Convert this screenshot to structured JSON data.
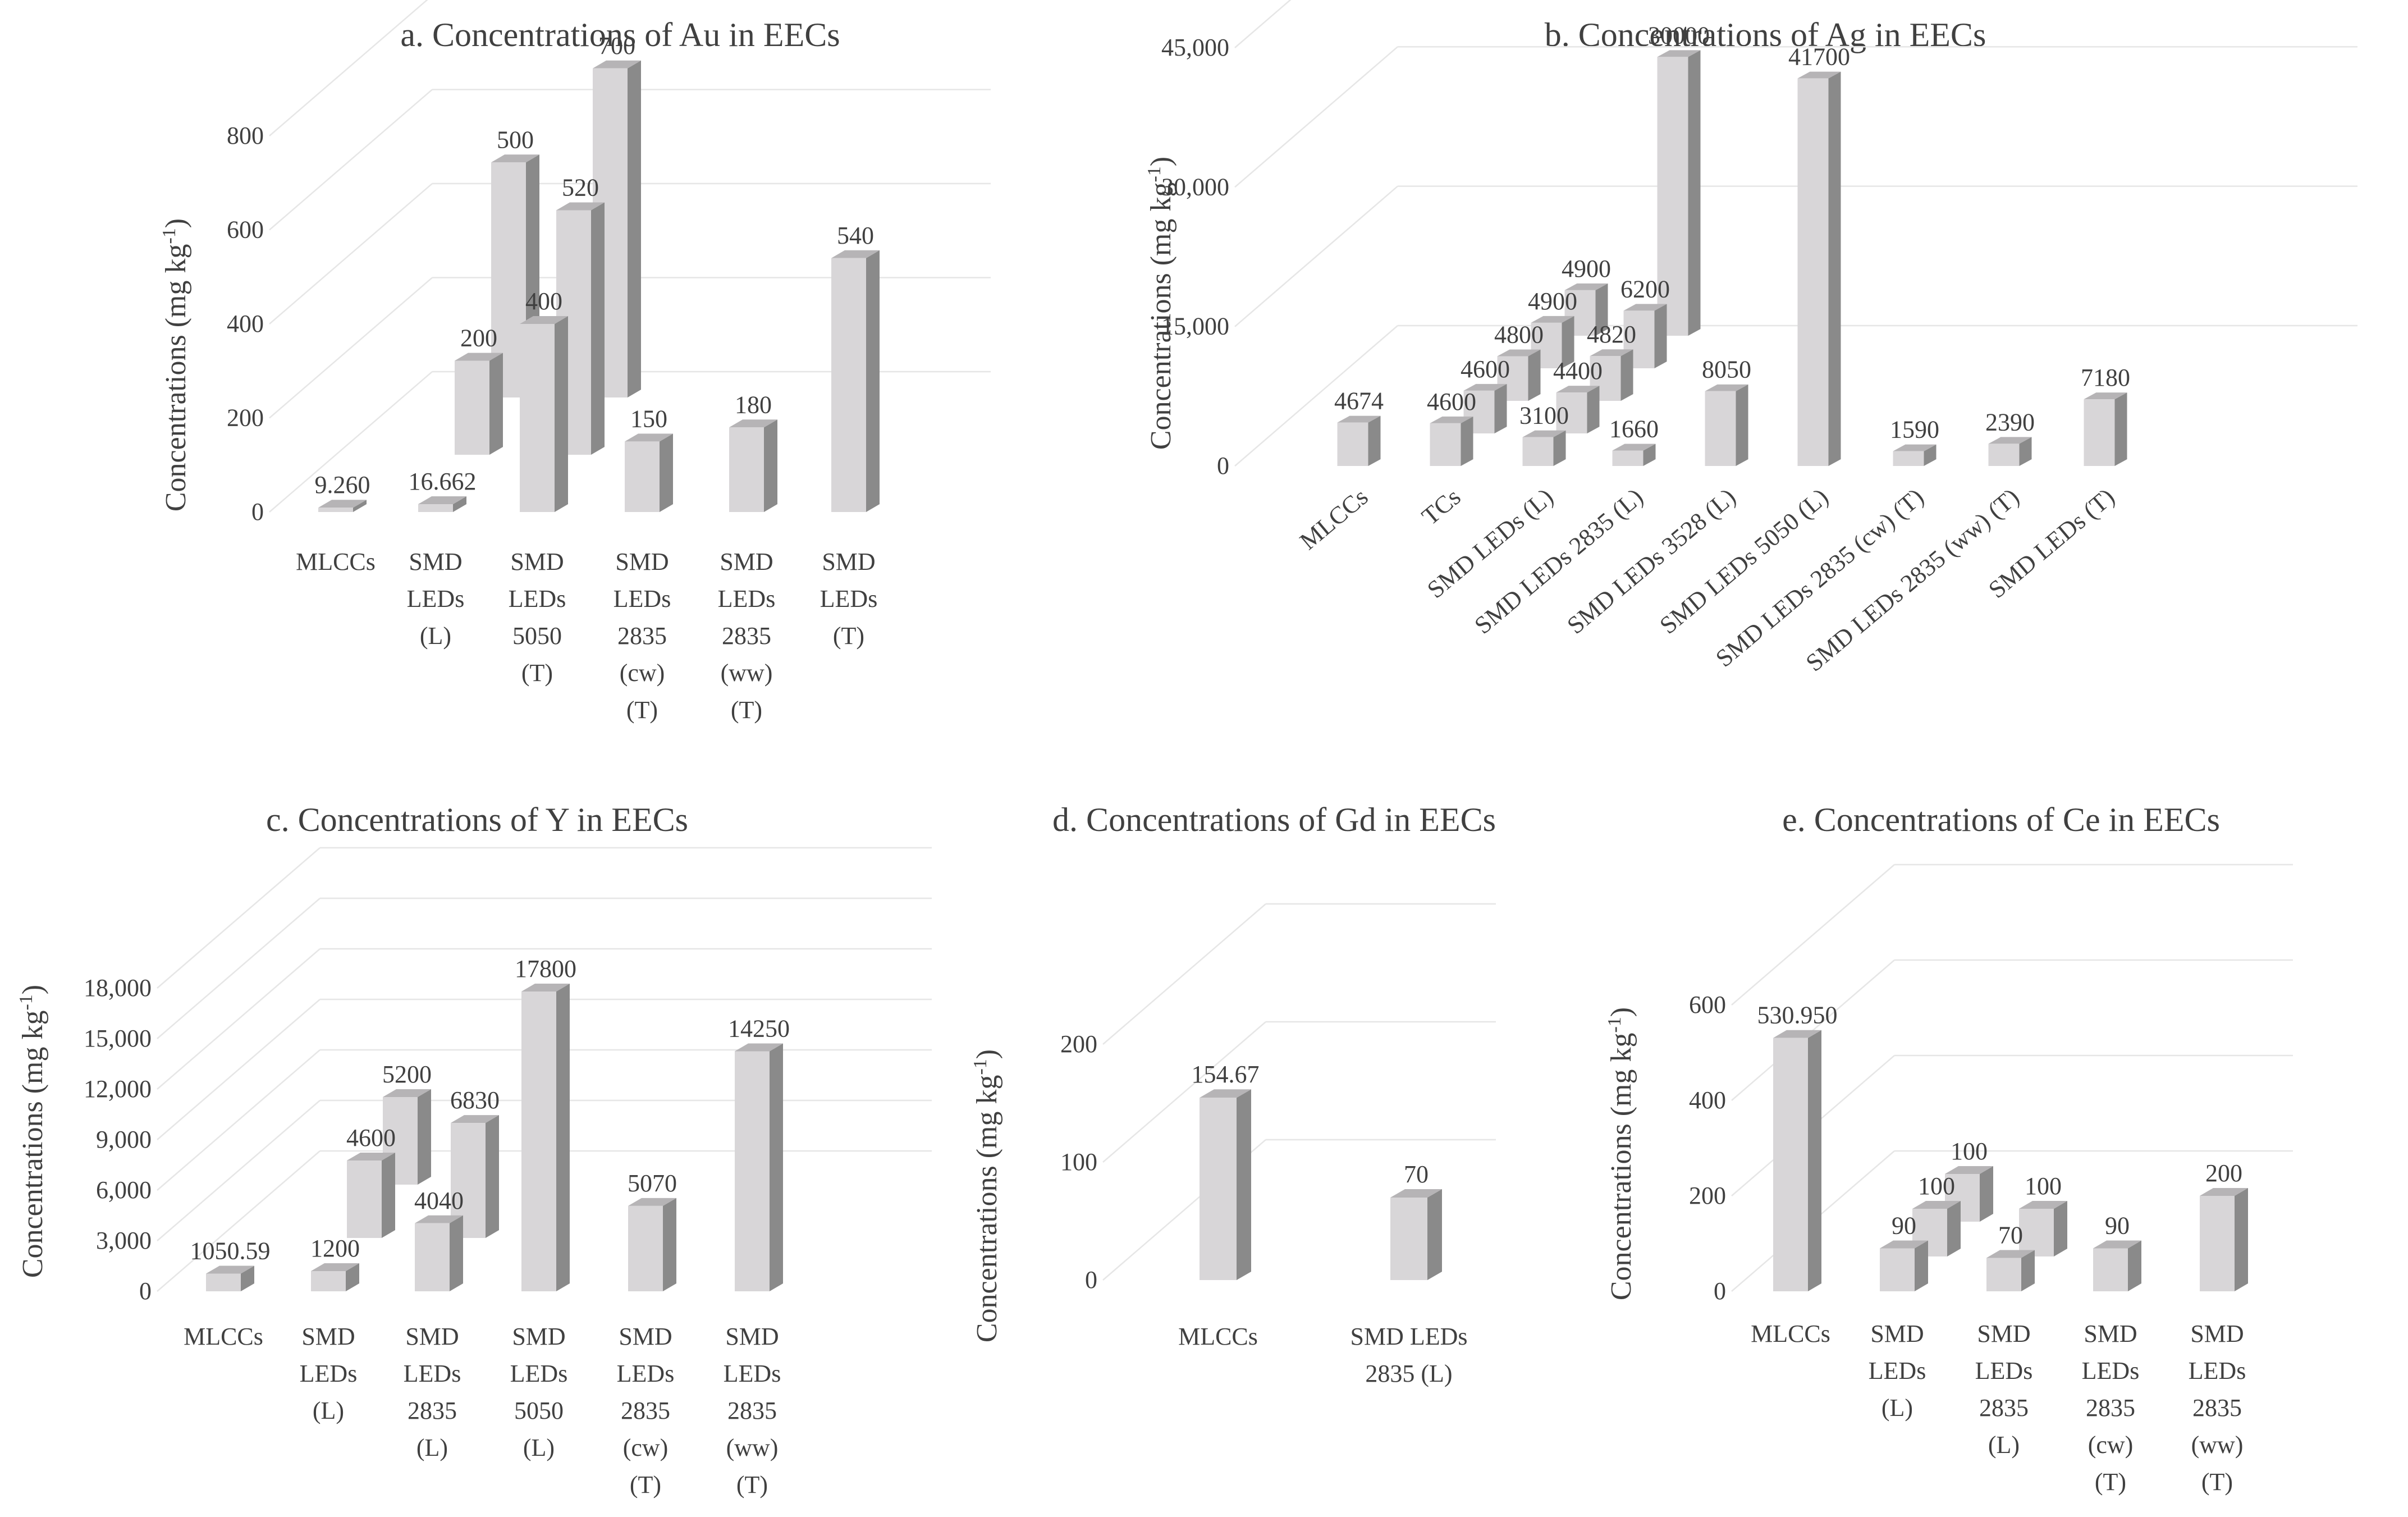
{
  "chart_data": [
    {
      "id": "au",
      "type": "bar",
      "title": "a. Concentrations of Au in EECs",
      "ylabel": "Concentrations (mg kg",
      "ylabel_sup": "-1",
      "ylabel_close": ")",
      "ylim": [
        0,
        800
      ],
      "yticks": [
        "0",
        "200",
        "400",
        "600",
        "800"
      ],
      "grid": true,
      "categories": [
        [
          "MLCCs"
        ],
        [
          "SMD",
          "LEDs",
          "(L)"
        ],
        [
          "SMD",
          "LEDs",
          "5050",
          "(T)"
        ],
        [
          "SMD",
          "LEDs",
          "2835",
          "(cw)",
          "(T)"
        ],
        [
          "SMD",
          "LEDs",
          "2835",
          "(ww)",
          "(T)"
        ],
        [
          "SMD",
          "LEDs",
          "(T)"
        ]
      ],
      "bars": [
        {
          "category": 0,
          "depth": 0,
          "value": 9.26,
          "label": "9.260"
        },
        {
          "category": 1,
          "depth": 0,
          "value": 16.662,
          "label": "16.662"
        },
        {
          "category": 1,
          "depth": 1,
          "value": 200,
          "label": "200"
        },
        {
          "category": 1,
          "depth": 2,
          "value": 500,
          "label": "500"
        },
        {
          "category": 2,
          "depth": 0,
          "value": 400,
          "label": "400"
        },
        {
          "category": 2,
          "depth": 1,
          "value": 520,
          "label": "520"
        },
        {
          "category": 2,
          "depth": 2,
          "value": 700,
          "label": "700"
        },
        {
          "category": 3,
          "depth": 0,
          "value": 150,
          "label": "150"
        },
        {
          "category": 4,
          "depth": 0,
          "value": 180,
          "label": "180"
        },
        {
          "category": 5,
          "depth": 0,
          "value": 540,
          "label": "540"
        }
      ]
    },
    {
      "id": "ag",
      "type": "bar",
      "title": "b. Concentrations of Ag in EECs",
      "ylabel": "Concentrations (mg kg",
      "ylabel_sup": "-1",
      "ylabel_close": ")",
      "ylim": [
        0,
        45000
      ],
      "yticks": [
        "0",
        "15,000",
        "30,000",
        "45,000"
      ],
      "grid": true,
      "categories": [
        [
          "MLCCs"
        ],
        [
          "TCs"
        ],
        [
          "SMD LEDs (L)"
        ],
        [
          "SMD LEDs 2835 (L)"
        ],
        [
          "SMD LEDs 3528 (L)"
        ],
        [
          "SMD LEDs 5050 (L)"
        ],
        [
          "SMD LEDs 2835 (cw) (T)"
        ],
        [
          "SMD LEDs 2835 (ww) (T)"
        ],
        [
          "SMD LEDs (T)"
        ]
      ],
      "bars": [
        {
          "category": 0,
          "depth": 0,
          "value": 4674,
          "label": "4674"
        },
        {
          "category": 1,
          "depth": 0,
          "value": 4600,
          "label": "4600"
        },
        {
          "category": 1,
          "depth": 1,
          "value": 4600,
          "label": "4600"
        },
        {
          "category": 1,
          "depth": 2,
          "value": 4800,
          "label": "4800"
        },
        {
          "category": 1,
          "depth": 3,
          "value": 4900,
          "label": "4900"
        },
        {
          "category": 1,
          "depth": 4,
          "value": 4900,
          "label": "4900"
        },
        {
          "category": 2,
          "depth": 0,
          "value": 3100,
          "label": "3100"
        },
        {
          "category": 2,
          "depth": 1,
          "value": 4400,
          "label": "4400"
        },
        {
          "category": 2,
          "depth": 2,
          "value": 4820,
          "label": "4820"
        },
        {
          "category": 2,
          "depth": 3,
          "value": 6200,
          "label": "6200"
        },
        {
          "category": 2,
          "depth": 4,
          "value": 30000,
          "label": "30000"
        },
        {
          "category": 3,
          "depth": 0,
          "value": 1660,
          "label": "1660"
        },
        {
          "category": 4,
          "depth": 0,
          "value": 8050,
          "label": "8050"
        },
        {
          "category": 5,
          "depth": 0,
          "value": 41700,
          "label": "41700"
        },
        {
          "category": 6,
          "depth": 0,
          "value": 1590,
          "label": "1590"
        },
        {
          "category": 7,
          "depth": 0,
          "value": 2390,
          "label": "2390"
        },
        {
          "category": 8,
          "depth": 0,
          "value": 7180,
          "label": "7180"
        }
      ]
    },
    {
      "id": "y",
      "type": "bar",
      "title": "c. Concentrations of Y in EECs",
      "ylabel": "Concentrations (mg kg",
      "ylabel_sup": "-1",
      "ylabel_close": ")",
      "ylim": [
        0,
        18000
      ],
      "yticks": [
        "0",
        "3,000",
        "6,000",
        "9,000",
        "12,000",
        "15,000",
        "18,000"
      ],
      "grid": true,
      "categories": [
        [
          "MLCCs"
        ],
        [
          "SMD",
          "LEDs",
          "(L)"
        ],
        [
          "SMD",
          "LEDs",
          "2835",
          "(L)"
        ],
        [
          "SMD",
          "LEDs",
          "5050",
          "(L)"
        ],
        [
          "SMD",
          "LEDs",
          "2835",
          "(cw)",
          "(T)"
        ],
        [
          "SMD",
          "LEDs",
          "2835",
          "(ww)",
          "(T)"
        ]
      ],
      "bars": [
        {
          "category": 0,
          "depth": 0,
          "value": 1050.59,
          "label": "1050.59"
        },
        {
          "category": 1,
          "depth": 0,
          "value": 1200,
          "label": "1200"
        },
        {
          "category": 1,
          "depth": 1,
          "value": 4600,
          "label": "4600"
        },
        {
          "category": 1,
          "depth": 2,
          "value": 5200,
          "label": "5200"
        },
        {
          "category": 2,
          "depth": 0,
          "value": 4040,
          "label": "4040"
        },
        {
          "category": 2,
          "depth": 1,
          "value": 6830,
          "label": "6830"
        },
        {
          "category": 3,
          "depth": 0,
          "value": 17800,
          "label": "17800"
        },
        {
          "category": 4,
          "depth": 0,
          "value": 5070,
          "label": "5070"
        },
        {
          "category": 5,
          "depth": 0,
          "value": 14250,
          "label": "14250"
        }
      ]
    },
    {
      "id": "gd",
      "type": "bar",
      "title": "d. Concentrations of Gd in EECs",
      "ylabel": "Concentrations (mg kg",
      "ylabel_sup": "-1",
      "ylabel_close": ")",
      "ylim": [
        0,
        200
      ],
      "yticks": [
        "0",
        "100",
        "200"
      ],
      "grid": true,
      "categories": [
        [
          "MLCCs"
        ],
        [
          "SMD LEDs",
          "2835 (L)"
        ]
      ],
      "bars": [
        {
          "category": 0,
          "depth": 0,
          "value": 154.67,
          "label": "154.67"
        },
        {
          "category": 1,
          "depth": 0,
          "value": 70,
          "label": "70"
        }
      ]
    },
    {
      "id": "ce",
      "type": "bar",
      "title": "e. Concentrations of Ce in EECs",
      "ylabel": "Concentrations (mg kg",
      "ylabel_sup": "-1",
      "ylabel_close": ")",
      "ylim": [
        0,
        600
      ],
      "yticks": [
        "0",
        "200",
        "400",
        "600"
      ],
      "grid": true,
      "categories": [
        [
          "MLCCs"
        ],
        [
          "SMD",
          "LEDs",
          "(L)"
        ],
        [
          "SMD",
          "LEDs",
          "2835",
          "(L)"
        ],
        [
          "SMD",
          "LEDs",
          "2835",
          "(cw)",
          "(T)"
        ],
        [
          "SMD",
          "LEDs",
          "2835",
          "(ww)",
          "(T)"
        ]
      ],
      "bars": [
        {
          "category": 0,
          "depth": 0,
          "value": 530.95,
          "label": "530.950"
        },
        {
          "category": 1,
          "depth": 0,
          "value": 90,
          "label": "90"
        },
        {
          "category": 1,
          "depth": 1,
          "value": 100,
          "label": "100"
        },
        {
          "category": 1,
          "depth": 2,
          "value": 100,
          "label": "100"
        },
        {
          "category": 2,
          "depth": 0,
          "value": 70,
          "label": "70"
        },
        {
          "category": 2,
          "depth": 1,
          "value": 100,
          "label": "100"
        },
        {
          "category": 3,
          "depth": 0,
          "value": 90,
          "label": "90"
        },
        {
          "category": 4,
          "depth": 0,
          "value": 200,
          "label": "200"
        }
      ]
    }
  ],
  "colors": {
    "bar_front": "#d8d6d8",
    "bar_side": "#8a8a8a",
    "bar_top": "#b6b4b6",
    "grid": "#e6e6e6",
    "text": "#404040"
  }
}
